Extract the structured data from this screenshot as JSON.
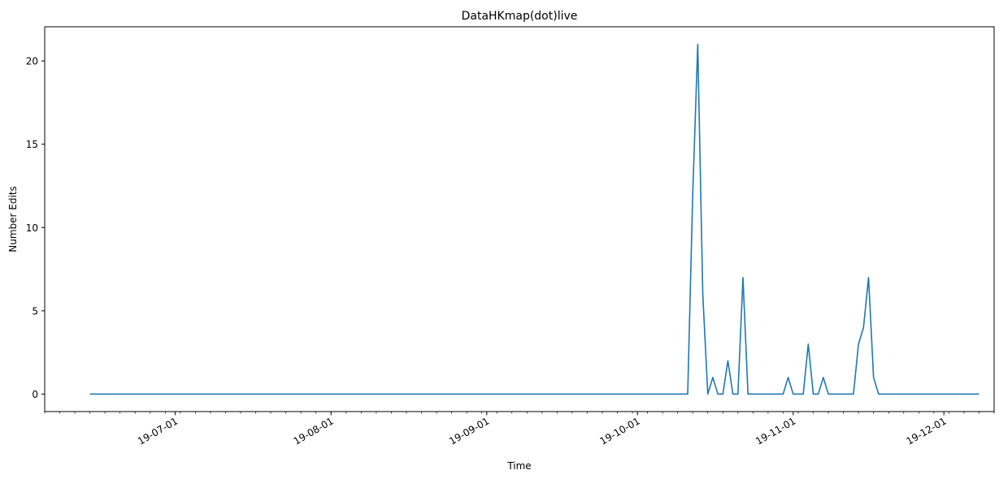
{
  "chart_data": {
    "type": "line",
    "title": "DataHKmap(dot)live",
    "xlabel": "Time",
    "ylabel": "Number Edits",
    "xlim": [
      "2019-06-05",
      "2019-12-11"
    ],
    "ylim": [
      -1.05,
      22.05
    ],
    "yticks": [
      0,
      5,
      10,
      15,
      20
    ],
    "xticks": [
      {
        "date": "2019-07-01",
        "label": "19-07-01"
      },
      {
        "date": "2019-08-01",
        "label": "19-08-01"
      },
      {
        "date": "2019-09-01",
        "label": "19-09-01"
      },
      {
        "date": "2019-10-01",
        "label": "19-10-01"
      },
      {
        "date": "2019-11-01",
        "label": "19-11-01"
      },
      {
        "date": "2019-12-01",
        "label": "19-12-01"
      }
    ],
    "grid": false,
    "line_color": "#1f77b4",
    "series": [
      {
        "x": [
          "2019-06-14",
          "2019-10-11",
          "2019-10-12",
          "2019-10-13",
          "2019-10-14",
          "2019-10-15",
          "2019-10-16",
          "2019-10-17",
          "2019-10-18",
          "2019-10-19",
          "2019-10-20",
          "2019-10-21",
          "2019-10-22",
          "2019-10-23",
          "2019-10-24",
          "2019-10-25",
          "2019-10-26",
          "2019-10-27",
          "2019-10-28",
          "2019-10-29",
          "2019-10-30",
          "2019-10-31",
          "2019-11-01",
          "2019-11-02",
          "2019-11-03",
          "2019-11-04",
          "2019-11-05",
          "2019-11-06",
          "2019-11-07",
          "2019-11-08",
          "2019-11-09",
          "2019-11-10",
          "2019-11-11",
          "2019-11-12",
          "2019-11-13",
          "2019-11-14",
          "2019-11-15",
          "2019-11-16",
          "2019-11-17",
          "2019-11-18",
          "2019-11-19",
          "2019-11-20",
          "2019-11-21",
          "2019-11-22",
          "2019-12-08"
        ],
        "y": [
          0,
          0,
          12,
          21,
          6,
          0,
          1,
          0,
          0,
          2,
          0,
          0,
          7,
          0,
          0,
          0,
          0,
          0,
          0,
          0,
          0,
          1,
          0,
          0,
          0,
          3,
          0,
          0,
          1,
          0,
          0,
          0,
          0,
          0,
          0,
          3,
          4,
          7,
          1,
          0,
          0,
          0,
          0,
          0,
          0
        ]
      }
    ]
  }
}
